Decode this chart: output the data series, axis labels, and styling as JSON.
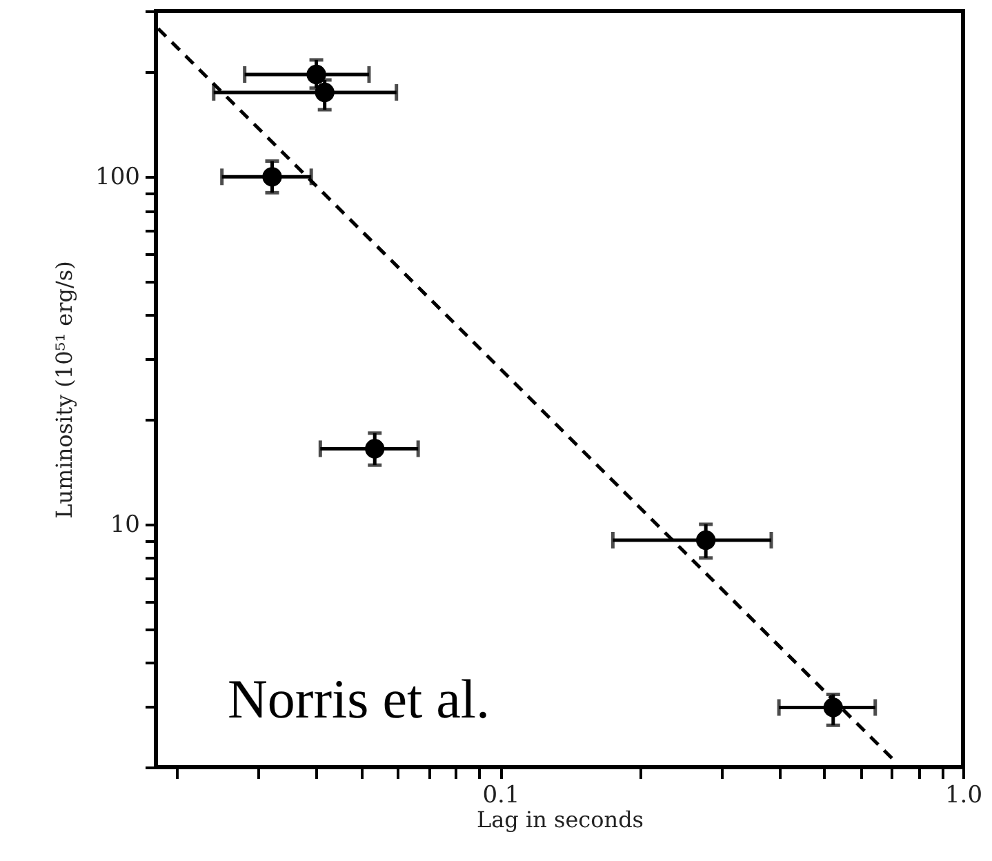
{
  "chart_data": {
    "type": "scatter",
    "xlabel": "Lag in seconds",
    "ylabel": "Luminosity (10⁵¹ erg/s)",
    "log": "xy",
    "grid": false,
    "marker": "circle",
    "xlim": [
      0.018,
      1
    ],
    "ylim": [
      2,
      300
    ],
    "xticks": [
      {
        "value": 0.02,
        "label": null
      },
      {
        "value": 0.03,
        "label": null
      },
      {
        "value": 0.04,
        "label": null
      },
      {
        "value": 0.05,
        "label": null
      },
      {
        "value": 0.06,
        "label": null
      },
      {
        "value": 0.07,
        "label": null
      },
      {
        "value": 0.08,
        "label": null
      },
      {
        "value": 0.09,
        "label": null
      },
      0.1,
      {
        "value": 0.2,
        "label": null
      },
      {
        "value": 0.3,
        "label": null
      },
      {
        "value": 0.4,
        "label": null
      },
      {
        "value": 0.5,
        "label": null
      },
      {
        "value": 0.6,
        "label": null
      },
      {
        "value": 0.7,
        "label": null
      },
      {
        "value": 0.8,
        "label": null
      },
      {
        "value": 0.9,
        "label": null
      },
      {
        "value": 1,
        "label": "1.0"
      }
    ],
    "yticks": [
      {
        "value": 2,
        "label": null
      },
      {
        "value": 3,
        "label": null
      },
      {
        "value": 4,
        "label": null
      },
      {
        "value": 5,
        "label": null
      },
      {
        "value": 6,
        "label": null
      },
      {
        "value": 7,
        "label": null
      },
      {
        "value": 8,
        "label": null
      },
      {
        "value": 9,
        "label": null
      },
      10,
      {
        "value": 20,
        "label": null
      },
      {
        "value": 30,
        "label": null
      },
      {
        "value": 40,
        "label": null
      },
      {
        "value": 50,
        "label": null
      },
      {
        "value": 60,
        "label": null
      },
      {
        "value": 70,
        "label": null
      },
      {
        "value": 80,
        "label": null
      },
      {
        "value": 90,
        "label": null
      },
      100,
      {
        "value": 200,
        "label": null
      },
      {
        "value": 300,
        "label": null
      }
    ],
    "series": [
      {
        "color": "#000000",
        "x": [
          0.04,
          0.0417,
          0.0321,
          0.0535,
          0.278,
          0.524
        ],
        "values": [
          197,
          175,
          100,
          16.5,
          9.0,
          2.97
        ],
        "xerrors": [
          [
            0.028,
            0.052
          ],
          [
            0.024,
            0.0596
          ],
          [
            0.025,
            0.039
          ],
          [
            0.0408,
            0.0664
          ],
          [
            0.175,
            0.385
          ],
          [
            0.4,
            0.646
          ]
        ],
        "errors": [
          [
            180,
            217
          ],
          [
            156,
            190
          ],
          [
            90,
            111
          ],
          [
            14.8,
            18.3
          ],
          [
            8.0,
            10.0
          ],
          [
            2.64,
            3.24
          ]
        ]
      },
      {
        "type": "line",
        "color": "#000000",
        "line_style": "dashed",
        "marker": "none",
        "x": [
          0.0182,
          0.71
        ],
        "values": [
          267,
          2.09
        ]
      }
    ],
    "annotations": [
      "Norris et al."
    ]
  }
}
